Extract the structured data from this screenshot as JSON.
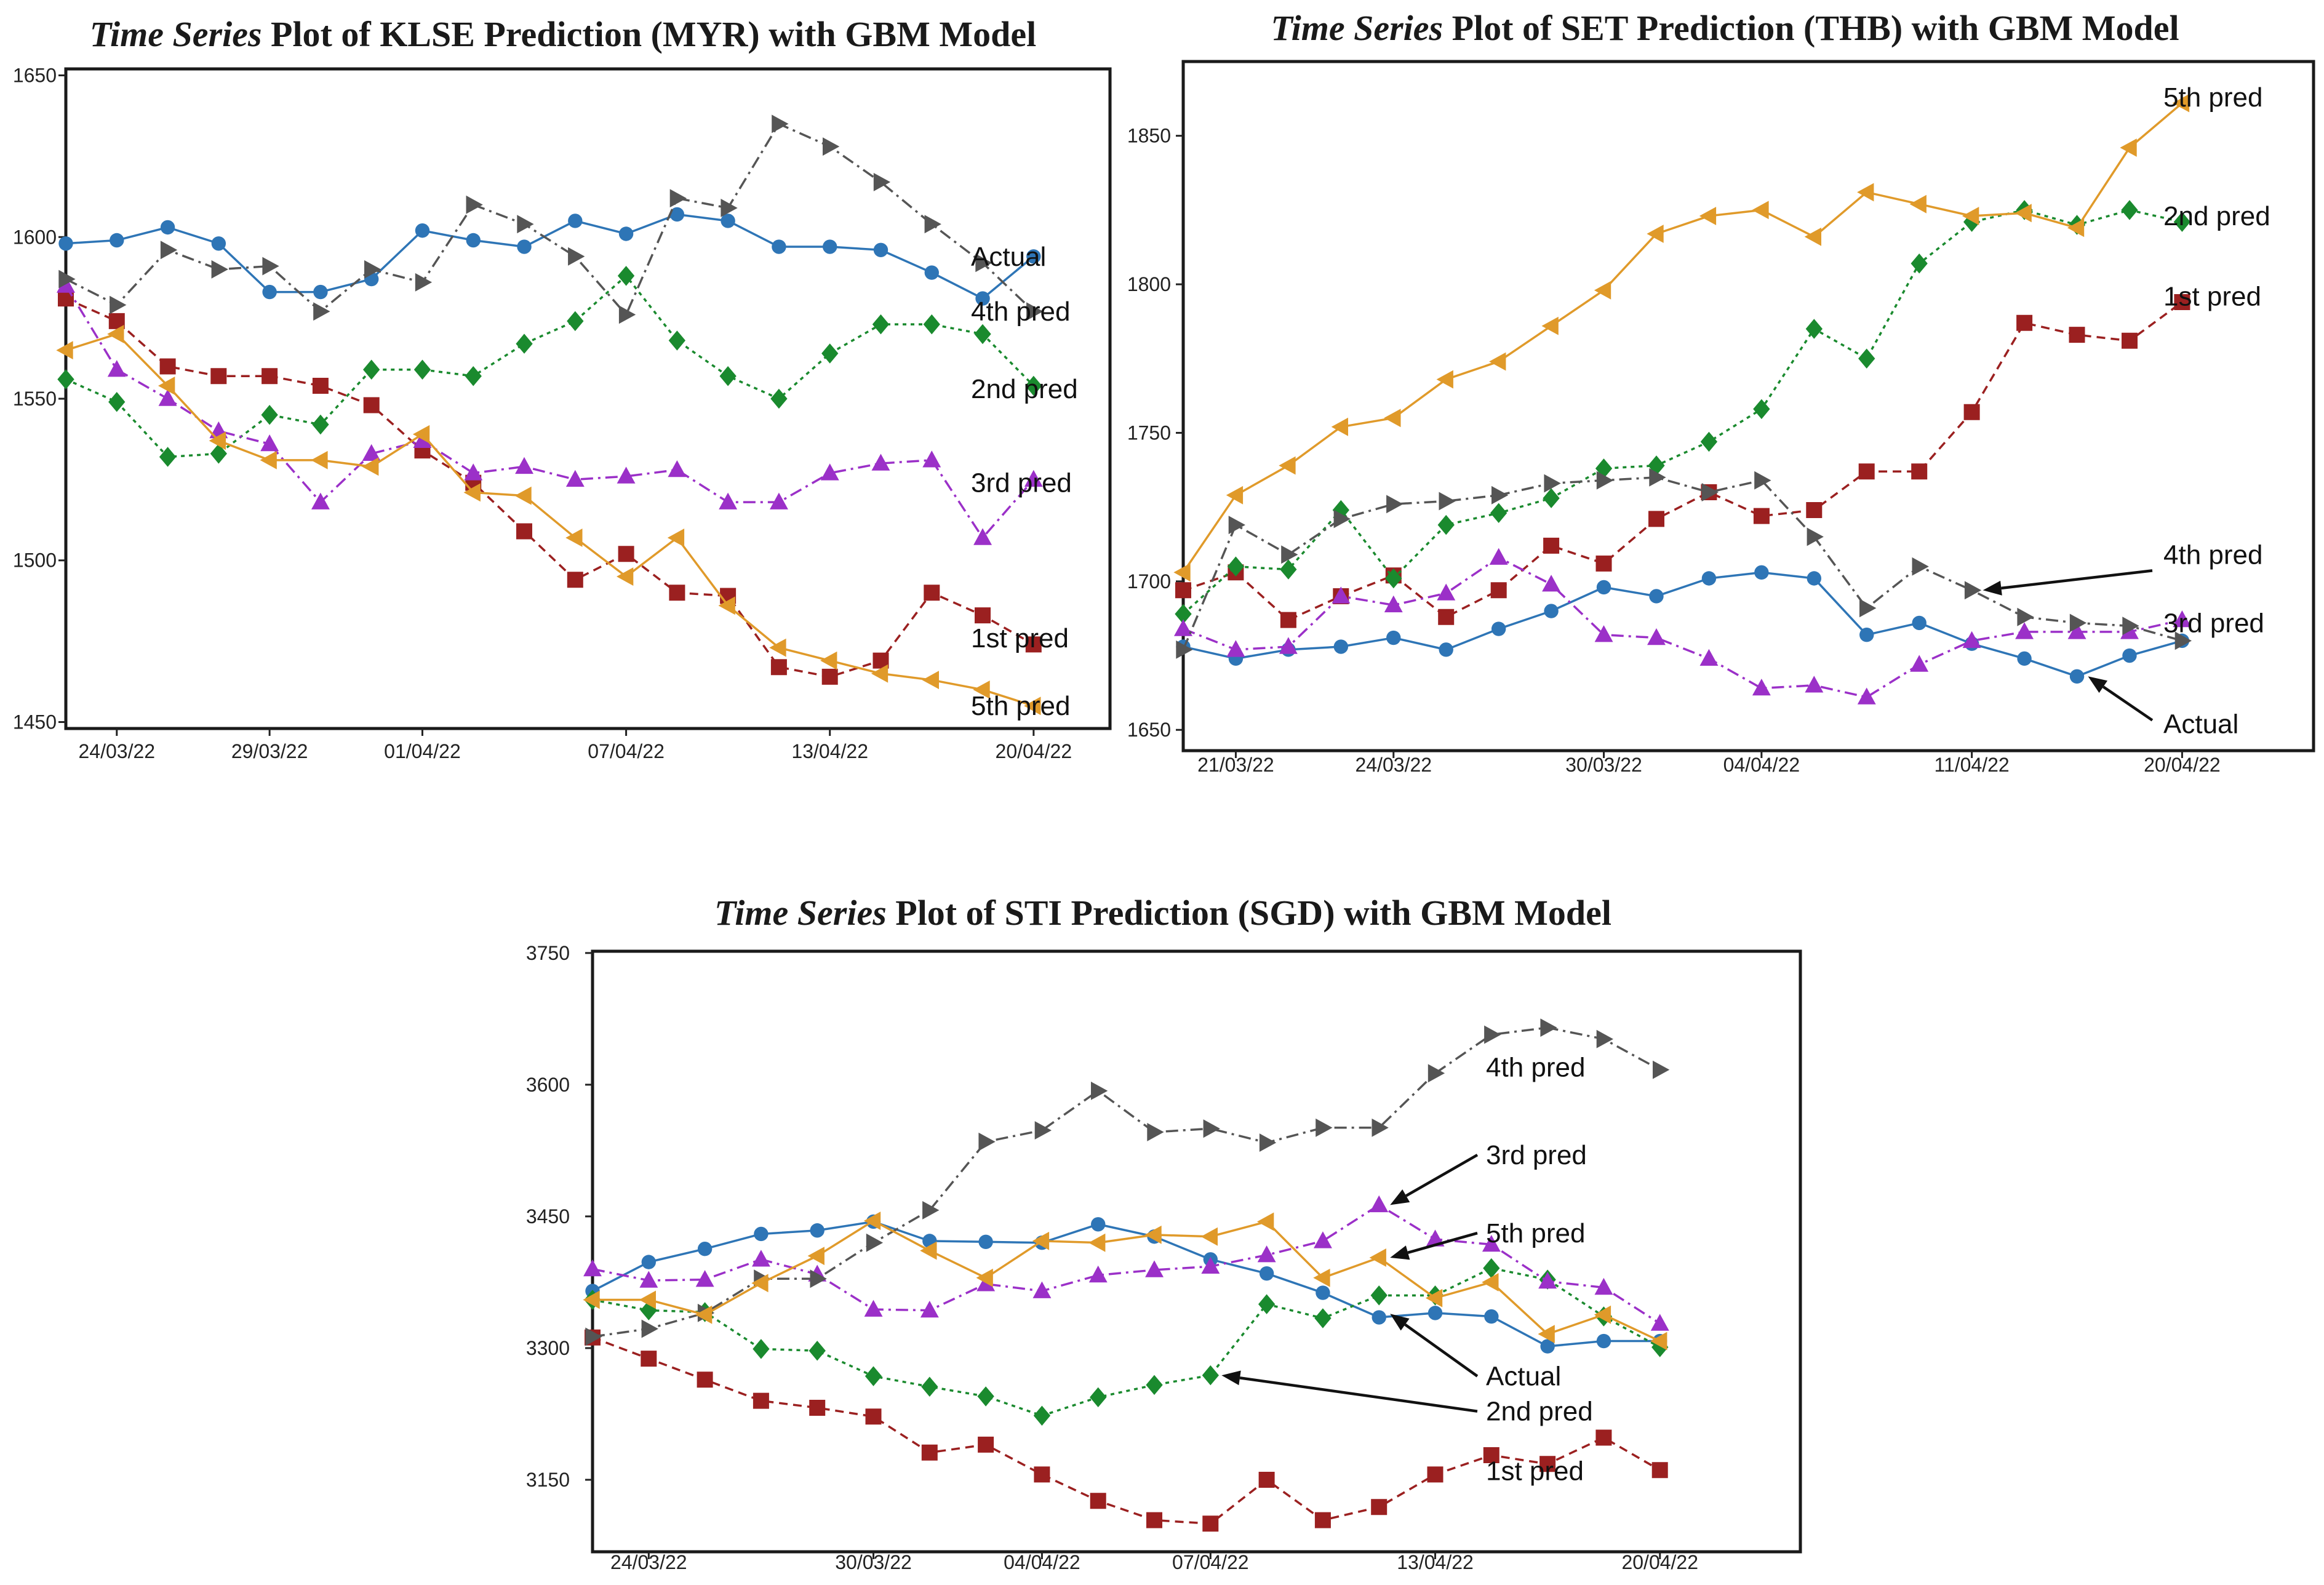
{
  "chart_data": [
    {
      "type": "line",
      "title_italic": "Time Series",
      "title_rest": " Plot of KLSE Prediction (MYR) with GBM Model",
      "yticks": [
        1450,
        1500,
        1550,
        1600,
        1650
      ],
      "ylim": [
        1448,
        1652
      ],
      "xlim": [
        0,
        20.5
      ],
      "xtick_labels": [
        {
          "i": 1,
          "text": "24/03/22"
        },
        {
          "i": 4,
          "text": "29/03/22"
        },
        {
          "i": 7,
          "text": "01/04/22"
        },
        {
          "i": 11,
          "text": "07/04/22"
        },
        {
          "i": 15,
          "text": "13/04/22"
        },
        {
          "i": 19,
          "text": "20/04/22"
        }
      ],
      "series": [
        {
          "name": "Actual",
          "color": "#2e75b6",
          "marker": "circle",
          "dash": "",
          "values": [
            1598,
            1599,
            1603,
            1598,
            1583,
            1583,
            1587,
            1602,
            1599,
            1597,
            1605,
            1601,
            1607,
            1605,
            1597,
            1597,
            1596,
            1589,
            1581,
            1594
          ]
        },
        {
          "name": "1st pred",
          "color": "#9b2020",
          "marker": "square",
          "dash": "14,9",
          "values": [
            1581,
            1574,
            1560,
            1557,
            1557,
            1554,
            1548,
            1534,
            1524,
            1509,
            1494,
            1502,
            1490,
            1489,
            1467,
            1464,
            1469,
            1490,
            1483,
            1474
          ]
        },
        {
          "name": "2nd pred",
          "color": "#1a8a2e",
          "marker": "diamond",
          "dash": "6,7",
          "values": [
            1556,
            1549,
            1532,
            1533,
            1545,
            1542,
            1559,
            1559,
            1557,
            1567,
            1574,
            1588,
            1568,
            1557,
            1550,
            1564,
            1573,
            1573,
            1570,
            1554
          ]
        },
        {
          "name": "3rd pred",
          "color": "#9b30c8",
          "marker": "triangle-up",
          "dash": "20,8,4,8",
          "values": [
            1585,
            1559,
            1550,
            1540,
            1536,
            1518,
            1533,
            1537,
            1527,
            1529,
            1525,
            1526,
            1528,
            1518,
            1518,
            1527,
            1530,
            1531,
            1507,
            1525
          ]
        },
        {
          "name": "4th pred",
          "color": "#555555",
          "marker": "triangle-right",
          "dash": "20,8,4,8",
          "values": [
            1587,
            1579,
            1596,
            1590,
            1591,
            1577,
            1590,
            1586,
            1610,
            1604,
            1594,
            1576,
            1612,
            1609,
            1635,
            1628,
            1617,
            1604,
            1592,
            1577
          ]
        },
        {
          "name": "5th pred",
          "color": "#e09a2a",
          "marker": "triangle-left",
          "dash": "",
          "values": [
            1565,
            1570,
            1554,
            1537,
            1531,
            1531,
            1529,
            1539,
            1521,
            1520,
            1507,
            1495,
            1507,
            1486,
            1473,
            1469,
            1465,
            1463,
            1460,
            1455
          ]
        }
      ],
      "end_labels": [
        {
          "text": "Actual",
          "y": 1594
        },
        {
          "text": "4th pred",
          "y": 1577
        },
        {
          "text": "2nd pred",
          "y": 1553
        },
        {
          "text": "3rd pred",
          "y": 1524
        },
        {
          "text": "1st pred",
          "y": 1476
        },
        {
          "text": "5th pred",
          "y": 1455
        }
      ],
      "callouts": []
    },
    {
      "type": "line",
      "title_italic": "Time Series",
      "title_rest": " Plot of SET Prediction (THB) with GBM Model",
      "yticks": [
        1650,
        1700,
        1750,
        1800,
        1850
      ],
      "ylim": [
        1643,
        1875
      ],
      "xlim": [
        0,
        21.5
      ],
      "xtick_labels": [
        {
          "i": 1,
          "text": "21/03/22"
        },
        {
          "i": 4,
          "text": "24/03/22"
        },
        {
          "i": 8,
          "text": "30/03/22"
        },
        {
          "i": 11,
          "text": "04/04/22"
        },
        {
          "i": 15,
          "text": "11/04/22"
        },
        {
          "i": 19,
          "text": "20/04/22"
        }
      ],
      "series": [
        {
          "name": "Actual",
          "color": "#2e75b6",
          "marker": "circle",
          "dash": "",
          "values": [
            1678,
            1674,
            1677,
            1678,
            1681,
            1677,
            1684,
            1690,
            1698,
            1695,
            1701,
            1703,
            1701,
            1682,
            1686,
            1679,
            1674,
            1668,
            1675,
            1680
          ]
        },
        {
          "name": "1st pred",
          "color": "#9b2020",
          "marker": "square",
          "dash": "14,9",
          "values": [
            1697,
            1703,
            1687,
            1695,
            1702,
            1688,
            1697,
            1712,
            1706,
            1721,
            1730,
            1722,
            1724,
            1737,
            1737,
            1757,
            1787,
            1783,
            1781,
            1794
          ]
        },
        {
          "name": "2nd pred",
          "color": "#1a8a2e",
          "marker": "diamond",
          "dash": "6,7",
          "values": [
            1689,
            1705,
            1704,
            1724,
            1701,
            1719,
            1723,
            1728,
            1738,
            1739,
            1747,
            1758,
            1785,
            1775,
            1807,
            1821,
            1825,
            1820,
            1825,
            1821
          ]
        },
        {
          "name": "3rd pred",
          "color": "#9b30c8",
          "marker": "triangle-up",
          "dash": "20,8,4,8",
          "values": [
            1684,
            1677,
            1678,
            1695,
            1692,
            1696,
            1708,
            1699,
            1682,
            1681,
            1674,
            1664,
            1665,
            1661,
            1672,
            1680,
            1683,
            1683,
            1683,
            1687
          ]
        },
        {
          "name": "4th pred",
          "color": "#555555",
          "marker": "triangle-right",
          "dash": "20,8,4,8",
          "values": [
            1677,
            1719,
            1709,
            1721,
            1726,
            1727,
            1729,
            1733,
            1734,
            1735,
            1730,
            1734,
            1715,
            1691,
            1705,
            1697,
            1688,
            1686,
            1685,
            1680
          ]
        },
        {
          "name": "5th pred",
          "color": "#e09a2a",
          "marker": "triangle-left",
          "dash": "",
          "values": [
            1703,
            1729,
            1739,
            1752,
            1755,
            1768,
            1774,
            1786,
            1798,
            1817,
            1823,
            1825,
            1816,
            1831,
            1827,
            1823,
            1824,
            1819,
            1846,
            1861
          ]
        }
      ],
      "end_labels": [
        {
          "text": "5th pred",
          "y": 1863
        },
        {
          "text": "2nd pred",
          "y": 1823
        },
        {
          "text": "1st pred",
          "y": 1796
        }
      ],
      "callouts": [
        {
          "text": "4th pred",
          "label_y": 1709,
          "target_i": 15,
          "target_y": 1697
        },
        {
          "text": "3rd pred",
          "label_y": 1686,
          "target_i": null,
          "target_y": null
        },
        {
          "text": "Actual",
          "label_y": 1652,
          "target_i": 17,
          "target_y": 1668
        }
      ]
    },
    {
      "type": "line",
      "title_italic": "Time Series",
      "title_rest": " Plot of STI Prediction (SGD) with GBM Model",
      "yticks": [
        3150,
        3300,
        3450,
        3600,
        3750
      ],
      "ylim": [
        3068,
        3752
      ],
      "xlim": [
        0,
        21.5
      ],
      "xtick_labels": [
        {
          "i": 1,
          "text": "24/03/22"
        },
        {
          "i": 5,
          "text": "30/03/22"
        },
        {
          "i": 8,
          "text": "04/04/22"
        },
        {
          "i": 11,
          "text": "07/04/22"
        },
        {
          "i": 15,
          "text": "13/04/22"
        },
        {
          "i": 19,
          "text": "20/04/22"
        }
      ],
      "series": [
        {
          "name": "Actual",
          "color": "#2e75b6",
          "marker": "circle",
          "dash": "",
          "values": [
            3365,
            3398,
            3413,
            3430,
            3434,
            3444,
            3422,
            3421,
            3420,
            3441,
            3427,
            3401,
            3385,
            3363,
            3335,
            3340,
            3336,
            3302,
            3308,
            3308
          ]
        },
        {
          "name": "1st pred",
          "color": "#9b2020",
          "marker": "square",
          "dash": "14,9",
          "values": [
            3312,
            3288,
            3264,
            3240,
            3232,
            3222,
            3181,
            3190,
            3156,
            3126,
            3104,
            3100,
            3150,
            3104,
            3119,
            3156,
            3178,
            3168,
            3198,
            3161
          ]
        },
        {
          "name": "2nd pred",
          "color": "#1a8a2e",
          "marker": "diamond",
          "dash": "6,7",
          "values": [
            3355,
            3343,
            3341,
            3299,
            3297,
            3268,
            3256,
            3245,
            3223,
            3244,
            3258,
            3269,
            3350,
            3334,
            3360,
            3360,
            3391,
            3378,
            3336,
            3301
          ]
        },
        {
          "name": "3rd pred",
          "color": "#9b30c8",
          "marker": "triangle-up",
          "dash": "20,8,4,8",
          "values": [
            3390,
            3377,
            3378,
            3401,
            3384,
            3344,
            3343,
            3373,
            3365,
            3383,
            3389,
            3393,
            3406,
            3422,
            3463,
            3424,
            3418,
            3376,
            3369,
            3328
          ]
        },
        {
          "name": "4th pred",
          "color": "#555555",
          "marker": "triangle-right",
          "dash": "20,8,4,8",
          "values": [
            3313,
            3322,
            3340,
            3379,
            3379,
            3420,
            3457,
            3535,
            3548,
            3593,
            3546,
            3550,
            3534,
            3551,
            3551,
            3613,
            3657,
            3665,
            3652,
            3617
          ]
        },
        {
          "name": "5th pred",
          "color": "#e09a2a",
          "marker": "triangle-left",
          "dash": "",
          "values": [
            3355,
            3355,
            3338,
            3374,
            3405,
            3445,
            3411,
            3380,
            3422,
            3420,
            3429,
            3427,
            3444,
            3380,
            3403,
            3357,
            3375,
            3316,
            3338,
            3308
          ]
        }
      ],
      "end_labels": [
        {
          "text": "4th pred",
          "y": 3620
        },
        {
          "text": "1st pred",
          "y": 3160
        }
      ],
      "callouts": [
        {
          "text": "3rd pred",
          "label_y": 3520,
          "target_i": 14,
          "target_y": 3463
        },
        {
          "text": "5th pred",
          "label_y": 3431,
          "target_i": 14,
          "target_y": 3403
        },
        {
          "text": "Actual",
          "label_y": 3268,
          "target_i": 14,
          "target_y": 3339
        },
        {
          "text": "2nd pred",
          "label_y": 3228,
          "target_i": 11,
          "target_y": 3269
        }
      ]
    }
  ]
}
